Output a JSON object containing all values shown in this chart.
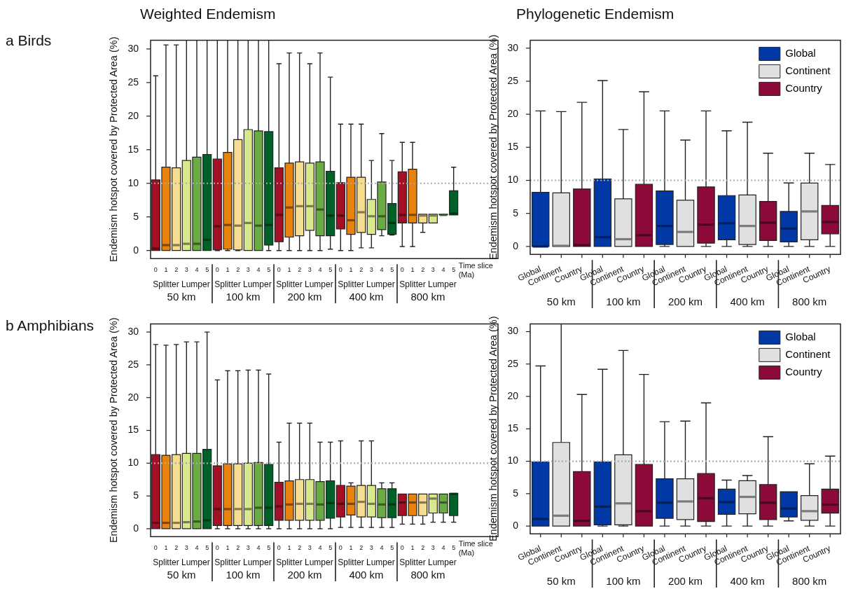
{
  "chart_data": [
    {
      "type": "box",
      "title": "Weighted Endemism",
      "subtitle": "a Birds",
      "ylabel": "Endemism hotspot covered by Protected Area (%)",
      "xlabel": "Time slice (Ma)",
      "categories": [
        "0",
        "1",
        "2",
        "3",
        "4",
        "5",
        "0",
        "1",
        "2",
        "3",
        "4",
        "5",
        "0",
        "1",
        "2",
        "3",
        "4",
        "5",
        "0",
        "1",
        "2",
        "3",
        "4",
        "5",
        "0",
        "1",
        "2",
        "3",
        "4",
        "5"
      ],
      "colors": [
        "#a50f25",
        "#e8820c",
        "#f5dc8f",
        "#d9e88a",
        "#6aab44",
        "#006128",
        "#a50f25",
        "#e8820c",
        "#f5dc8f",
        "#d9e88a",
        "#6aab44",
        "#006128",
        "#a50f25",
        "#e8820c",
        "#f5dc8f",
        "#d9e88a",
        "#6aab44",
        "#006128",
        "#a50f25",
        "#e8820c",
        "#f5dc8f",
        "#d9e88a",
        "#6aab44",
        "#006128",
        "#a50f25",
        "#e8820c",
        "#f5dc8f",
        "#d9e88a",
        "#6aab44",
        "#006128"
      ],
      "boxes": [
        {
          "low": 0,
          "q1": 0,
          "median": 0.3,
          "q3": 10.5,
          "high": 26
        },
        {
          "low": 0,
          "q1": 0,
          "median": 0.8,
          "q3": 12.4,
          "high": 30.6
        },
        {
          "low": 0,
          "q1": 0,
          "median": 0.8,
          "q3": 12.3,
          "high": 30.6
        },
        {
          "low": 0,
          "q1": 0,
          "median": 1,
          "q3": 13.4,
          "high": 31.3
        },
        {
          "low": 0,
          "q1": 0,
          "median": 1,
          "q3": 13.9,
          "high": 31.3
        },
        {
          "low": 0,
          "q1": 0,
          "median": 1.6,
          "q3": 14.3,
          "high": 31.3
        },
        {
          "low": 0,
          "q1": 0.1,
          "median": 3.6,
          "q3": 13.6,
          "high": 31.3
        },
        {
          "low": 0,
          "q1": 0.2,
          "median": 3.8,
          "q3": 14.6,
          "high": 31.3
        },
        {
          "low": 0,
          "q1": 0.1,
          "median": 3.7,
          "q3": 16.5,
          "high": 31.3
        },
        {
          "low": 0,
          "q1": 0,
          "median": 4.1,
          "q3": 18,
          "high": 31.3
        },
        {
          "low": 0,
          "q1": 0,
          "median": 3.7,
          "q3": 17.8,
          "high": 31.3
        },
        {
          "low": 0,
          "q1": 0.8,
          "median": 3.8,
          "q3": 17.7,
          "high": 31.3
        },
        {
          "low": 0,
          "q1": 1.3,
          "median": 5.3,
          "q3": 12.3,
          "high": 27.8
        },
        {
          "low": 0,
          "q1": 2,
          "median": 6.4,
          "q3": 13,
          "high": 29.4
        },
        {
          "low": 0,
          "q1": 2.2,
          "median": 6.6,
          "q3": 13.2,
          "high": 29.4
        },
        {
          "low": 0,
          "q1": 3,
          "median": 6.6,
          "q3": 13,
          "high": 27.8
        },
        {
          "low": 0,
          "q1": 2.2,
          "median": 6.1,
          "q3": 13.2,
          "high": 29.4
        },
        {
          "low": 0.2,
          "q1": 2.2,
          "median": 5.2,
          "q3": 11.8,
          "high": 25.8
        },
        {
          "low": 0,
          "q1": 3.2,
          "median": 5.2,
          "q3": 10.1,
          "high": 18.8
        },
        {
          "low": 0,
          "q1": 2.4,
          "median": 4.5,
          "q3": 10.9,
          "high": 18.8
        },
        {
          "low": 0.4,
          "q1": 2.7,
          "median": 5.7,
          "q3": 10.9,
          "high": 18.8
        },
        {
          "low": 0.4,
          "q1": 2.4,
          "median": 5.1,
          "q3": 7.6,
          "high": 13.4
        },
        {
          "low": 2.2,
          "q1": 3.1,
          "median": 5.1,
          "q3": 10.2,
          "high": 17.4
        },
        {
          "low": 2.3,
          "q1": 2.4,
          "median": 4.1,
          "q3": 7,
          "high": 13.4
        },
        {
          "low": 0.6,
          "q1": 4.1,
          "median": 5.3,
          "q3": 11.7,
          "high": 16.1
        },
        {
          "low": 0.6,
          "q1": 4.1,
          "median": 5.3,
          "q3": 12.1,
          "high": 16.1
        },
        {
          "low": 2.7,
          "q1": 4.1,
          "median": 5.2,
          "q3": 5.4,
          "high": 5.4
        },
        {
          "low": 4.1,
          "q1": 4.1,
          "median": 5.2,
          "q3": 5.4,
          "high": 5.4
        },
        {
          "low": 5.3,
          "q1": 5.3,
          "median": 5.3,
          "q3": 5.4,
          "high": 5.4
        },
        {
          "low": 5.3,
          "q1": 5.3,
          "median": 5.5,
          "q3": 8.9,
          "high": 12.4
        }
      ],
      "ylim": [
        -1.2,
        31.3
      ],
      "yticks": [
        0,
        5,
        10,
        15,
        20,
        25,
        30
      ],
      "ref_lines": [
        {
          "axis": "y",
          "value": 10,
          "color": "#aaaaaa",
          "line_style": "dotted"
        }
      ],
      "annotations": [
        "Splitter Lumper",
        "Splitter Lumper",
        "Splitter Lumper",
        "Splitter Lumper",
        "Splitter Lumper",
        "50 km",
        "100 km",
        "200 km",
        "400 km",
        "800 km"
      ]
    },
    {
      "type": "box",
      "title": "Phylogenetic Endemism",
      "ylabel": "Endemism hotspot covered by Protected Area (%)",
      "categories": [
        "Global",
        "Continent",
        "Country",
        "Global",
        "Continent",
        "Country",
        "Global",
        "Continent",
        "Country",
        "Global",
        "Continent",
        "Country",
        "Global",
        "Continent",
        "Country"
      ],
      "series": [
        {
          "name": "Global",
          "color": "#0039a6",
          "boxes": [
            {
              "low": 0,
              "q1": 0,
              "median": 0,
              "q3": 8.2,
              "high": 20.5
            },
            null,
            null,
            {
              "low": 0,
              "q1": 0,
              "median": 1.4,
              "q3": 10.2,
              "high": 25.1
            },
            null,
            null,
            {
              "low": 0,
              "q1": 0.3,
              "median": 3.1,
              "q3": 8.4,
              "high": 20.5
            },
            null,
            null,
            {
              "low": 0,
              "q1": 1,
              "median": 3.5,
              "q3": 7.7,
              "high": 17.5
            },
            null,
            null,
            {
              "low": 0,
              "q1": 0.7,
              "median": 2.7,
              "q3": 5.3,
              "high": 9.6
            },
            null,
            null
          ]
        },
        {
          "name": "Continent",
          "color": "#e0e0e0",
          "boxes": [
            null,
            {
              "low": 0,
              "q1": 0,
              "median": 0.1,
              "q3": 8.1,
              "high": 20.4
            },
            null,
            null,
            {
              "low": 0,
              "q1": 0,
              "median": 1.1,
              "q3": 7.2,
              "high": 17.7
            },
            null,
            null,
            {
              "low": 0,
              "q1": 0,
              "median": 2.2,
              "q3": 7,
              "high": 16.1
            },
            null,
            null,
            {
              "low": 0,
              "q1": 0.3,
              "median": 3.1,
              "q3": 7.8,
              "high": 18.8
            },
            null,
            null,
            {
              "low": 0,
              "q1": 1,
              "median": 5.3,
              "q3": 9.6,
              "high": 14.1
            },
            null
          ]
        },
        {
          "name": "Country",
          "color": "#8b0a3a",
          "boxes": [
            null,
            null,
            {
              "low": 0,
              "q1": 0,
              "median": 0.2,
              "q3": 8.7,
              "high": 21.8
            },
            null,
            null,
            {
              "low": 0,
              "q1": 0,
              "median": 1.7,
              "q3": 9.4,
              "high": 23.4
            },
            null,
            null,
            {
              "low": 0,
              "q1": 0.5,
              "median": 3.3,
              "q3": 9,
              "high": 20.5
            },
            null,
            null,
            {
              "low": 0,
              "q1": 0.9,
              "median": 3.6,
              "q3": 6.8,
              "high": 14.1
            },
            null,
            null,
            {
              "low": 0,
              "q1": 1.9,
              "median": 3.7,
              "q3": 6.2,
              "high": 12.4
            }
          ]
        }
      ],
      "ylim": [
        -1.2,
        31.2
      ],
      "yticks": [
        0,
        5,
        10,
        15,
        20,
        25,
        30
      ],
      "legend": "top right",
      "ref_lines": [
        {
          "axis": "y",
          "value": 10,
          "color": "#aaaaaa",
          "line_style": "dotted"
        }
      ],
      "annotations": [
        "50 km",
        "100 km",
        "200 km",
        "400 km",
        "800 km"
      ]
    },
    {
      "type": "box",
      "subtitle": "b Amphibians",
      "ylabel": "Endemism hotspot covered by Protected Area (%)",
      "xlabel": "Time slice (Ma)",
      "categories": [
        "0",
        "1",
        "2",
        "3",
        "4",
        "5",
        "0",
        "1",
        "2",
        "3",
        "4",
        "5",
        "0",
        "1",
        "2",
        "3",
        "4",
        "5",
        "0",
        "1",
        "2",
        "3",
        "4",
        "5",
        "0",
        "1",
        "2",
        "3",
        "4",
        "5"
      ],
      "colors": [
        "#a50f25",
        "#e8820c",
        "#f5dc8f",
        "#d9e88a",
        "#6aab44",
        "#006128",
        "#a50f25",
        "#e8820c",
        "#f5dc8f",
        "#d9e88a",
        "#6aab44",
        "#006128",
        "#a50f25",
        "#e8820c",
        "#f5dc8f",
        "#d9e88a",
        "#6aab44",
        "#006128",
        "#a50f25",
        "#e8820c",
        "#f5dc8f",
        "#d9e88a",
        "#6aab44",
        "#006128",
        "#a50f25",
        "#e8820c",
        "#f5dc8f",
        "#d9e88a",
        "#6aab44",
        "#006128"
      ],
      "boxes": [
        {
          "low": 0,
          "q1": 0,
          "median": 0.9,
          "q3": 11.3,
          "high": 28.1
        },
        {
          "low": 0,
          "q1": 0,
          "median": 0.9,
          "q3": 11.2,
          "high": 28
        },
        {
          "low": 0,
          "q1": 0,
          "median": 0.9,
          "q3": 11.3,
          "high": 28.1
        },
        {
          "low": 0,
          "q1": 0,
          "median": 1,
          "q3": 11.5,
          "high": 28.5
        },
        {
          "low": 0,
          "q1": 0,
          "median": 1.1,
          "q3": 11.5,
          "high": 28.5
        },
        {
          "low": 0,
          "q1": 0,
          "median": 1.3,
          "q3": 12.1,
          "high": 30
        },
        {
          "low": 0,
          "q1": 0.5,
          "median": 3,
          "q3": 9.6,
          "high": 22.7
        },
        {
          "low": 0,
          "q1": 0.5,
          "median": 3,
          "q3": 9.9,
          "high": 24.1
        },
        {
          "low": 0,
          "q1": 0.5,
          "median": 3,
          "q3": 9.9,
          "high": 24.1
        },
        {
          "low": 0,
          "q1": 0.5,
          "median": 3,
          "q3": 10,
          "high": 24.2
        },
        {
          "low": 0,
          "q1": 0.5,
          "median": 3.2,
          "q3": 10.1,
          "high": 24.2
        },
        {
          "low": 0,
          "q1": 0.5,
          "median": 3.2,
          "q3": 9.8,
          "high": 23.6
        },
        {
          "low": 0,
          "q1": 1.3,
          "median": 3.4,
          "q3": 7.1,
          "high": 13.2
        },
        {
          "low": 0,
          "q1": 1.3,
          "median": 3.7,
          "q3": 7.3,
          "high": 16.1
        },
        {
          "low": 0,
          "q1": 1.3,
          "median": 3.8,
          "q3": 7.5,
          "high": 16.1
        },
        {
          "low": 0,
          "q1": 1.3,
          "median": 3.8,
          "q3": 7.5,
          "high": 16.1
        },
        {
          "low": 0,
          "q1": 1.3,
          "median": 3.7,
          "q3": 7.2,
          "high": 13.2
        },
        {
          "low": 0,
          "q1": 1.6,
          "median": 3.9,
          "q3": 7.3,
          "high": 13.2
        },
        {
          "low": 0.2,
          "q1": 1.8,
          "median": 3.8,
          "q3": 6.6,
          "high": 13.4
        },
        {
          "low": 0.2,
          "q1": 2.1,
          "median": 3.8,
          "q3": 6.5,
          "high": 7
        },
        {
          "low": 0.2,
          "q1": 1.8,
          "median": 4.1,
          "q3": 6.6,
          "high": 13.4
        },
        {
          "low": 0.2,
          "q1": 1.8,
          "median": 3.8,
          "q3": 6.6,
          "high": 13.4
        },
        {
          "low": 0.2,
          "q1": 1.7,
          "median": 3.7,
          "q3": 6.1,
          "high": 7
        },
        {
          "low": 0.2,
          "q1": 1.7,
          "median": 3.7,
          "q3": 6.1,
          "high": 7
        },
        {
          "low": 0.7,
          "q1": 2,
          "median": 4,
          "q3": 5.3,
          "high": 5.3
        },
        {
          "low": 0.7,
          "q1": 2,
          "median": 4,
          "q3": 5.3,
          "high": 5.3
        },
        {
          "low": 0.7,
          "q1": 2,
          "median": 4,
          "q3": 5.3,
          "high": 5.3
        },
        {
          "low": 1,
          "q1": 2.4,
          "median": 4.6,
          "q3": 5.3,
          "high": 5.3
        },
        {
          "low": 1,
          "q1": 2.4,
          "median": 4,
          "q3": 5.3,
          "high": 5.3
        },
        {
          "low": 1,
          "q1": 2,
          "median": 5.3,
          "q3": 5.4,
          "high": 5.4
        }
      ],
      "ylim": [
        -1.2,
        31.25
      ],
      "yticks": [
        0,
        5,
        10,
        15,
        20,
        25,
        30
      ],
      "ref_lines": [
        {
          "axis": "y",
          "value": 10,
          "color": "#aaaaaa",
          "line_style": "dotted"
        }
      ],
      "annotations": [
        "Splitter Lumper",
        "Splitter Lumper",
        "Splitter Lumper",
        "Splitter Lumper",
        "Splitter Lumper",
        "50 km",
        "100 km",
        "200 km",
        "400 km",
        "800 km"
      ]
    },
    {
      "type": "box",
      "ylabel": "Endemism hotspot covered by Protected Area (%)",
      "categories": [
        "Global",
        "Continent",
        "Country",
        "Global",
        "Continent",
        "Country",
        "Global",
        "Continent",
        "Country",
        "Global",
        "Continent",
        "Country",
        "Global",
        "Continent",
        "Country"
      ],
      "series": [
        {
          "name": "Global",
          "color": "#0039a6",
          "boxes": [
            {
              "low": 0,
              "q1": 0,
              "median": 1.1,
              "q3": 9.9,
              "high": 24.7
            },
            null,
            null,
            {
              "low": 0,
              "q1": 0.2,
              "median": 3,
              "q3": 9.9,
              "high": 24.2
            },
            null,
            null,
            {
              "low": 0,
              "q1": 1.2,
              "median": 3.6,
              "q3": 7.3,
              "high": 16.1
            },
            null,
            null,
            {
              "low": 0,
              "q1": 1.8,
              "median": 3.7,
              "q3": 5.7,
              "high": 7.1
            },
            null,
            null,
            {
              "low": 0.8,
              "q1": 1.4,
              "median": 2.7,
              "q3": 5.3,
              "high": 5.3
            },
            null,
            null
          ]
        },
        {
          "name": "Continent",
          "color": "#e0e0e0",
          "boxes": [
            null,
            {
              "low": 0,
              "q1": 0,
              "median": 1.6,
              "q3": 12.9,
              "high": 31.2
            },
            null,
            null,
            {
              "low": 0,
              "q1": 0.2,
              "median": 3.5,
              "q3": 11,
              "high": 27.1
            },
            null,
            null,
            {
              "low": 0,
              "q1": 1,
              "median": 3.8,
              "q3": 7.3,
              "high": 16.2
            },
            null,
            null,
            {
              "low": 0,
              "q1": 1.9,
              "median": 4.5,
              "q3": 7,
              "high": 7.8
            },
            null,
            null,
            {
              "low": 0,
              "q1": 0.9,
              "median": 2.3,
              "q3": 4.7,
              "high": 9.6
            },
            null
          ]
        },
        {
          "name": "Country",
          "color": "#8b0a3a",
          "boxes": [
            null,
            null,
            {
              "low": 0,
              "q1": 0,
              "median": 0.8,
              "q3": 8.4,
              "high": 20.3
            },
            null,
            null,
            {
              "low": 0,
              "q1": 0,
              "median": 2.3,
              "q3": 9.5,
              "high": 23.4
            },
            null,
            null,
            {
              "low": 0,
              "q1": 0.7,
              "median": 4.3,
              "q3": 8.1,
              "high": 19
            },
            null,
            null,
            {
              "low": 0,
              "q1": 1,
              "median": 3.6,
              "q3": 6.4,
              "high": 13.8
            },
            null,
            null,
            {
              "low": 0,
              "q1": 2,
              "median": 3.3,
              "q3": 5.7,
              "high": 10.8
            }
          ]
        }
      ],
      "ylim": [
        -1.2,
        31.2
      ],
      "yticks": [
        0,
        5,
        10,
        15,
        20,
        25,
        30
      ],
      "legend": "top right",
      "ref_lines": [
        {
          "axis": "y",
          "value": 10,
          "color": "#aaaaaa",
          "line_style": "dotted"
        }
      ],
      "annotations": [
        "50 km",
        "100 km",
        "200 km",
        "400 km",
        "800 km"
      ]
    }
  ]
}
